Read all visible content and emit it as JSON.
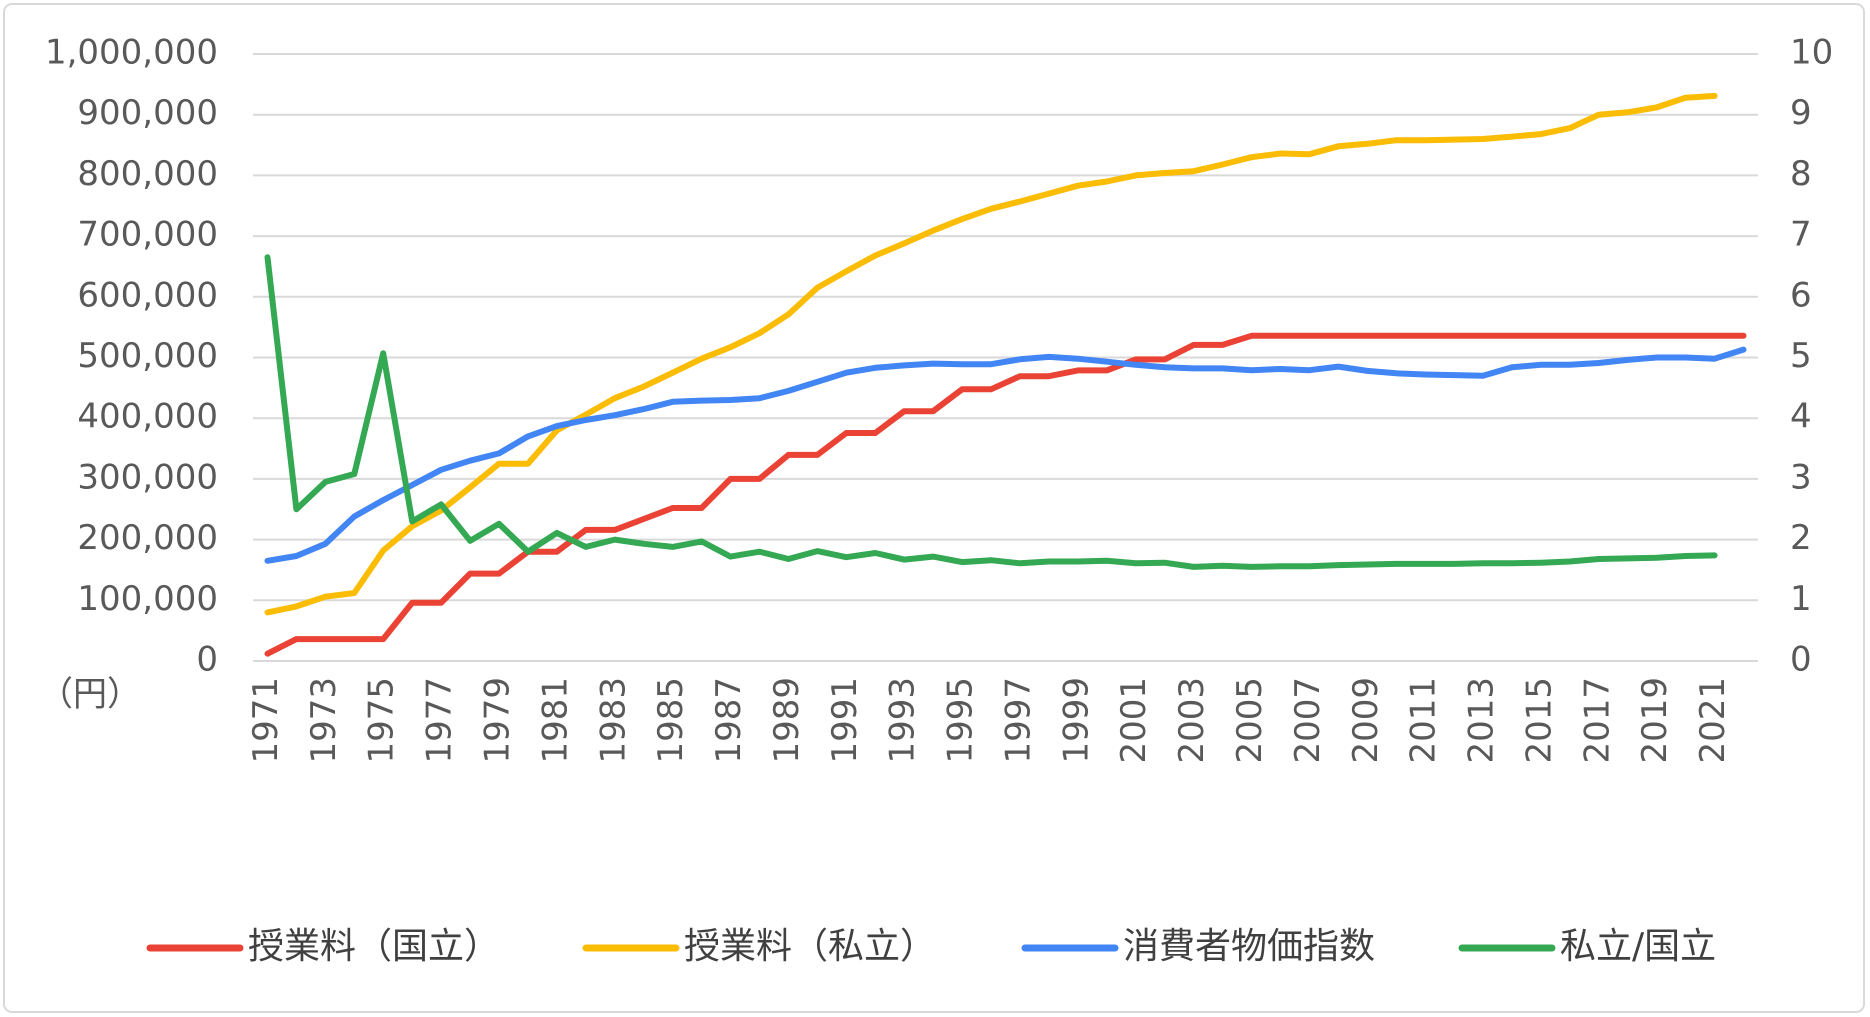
{
  "chart_data": {
    "type": "line",
    "unit_label": "（円）",
    "categories": [
      "1971",
      null,
      "1973",
      null,
      "1975",
      null,
      "1977",
      null,
      "1979",
      null,
      "1981",
      null,
      "1983",
      null,
      "1985",
      null,
      "1987",
      null,
      "1989",
      null,
      "1991",
      null,
      "1993",
      null,
      "1995",
      null,
      "1997",
      null,
      "1999",
      null,
      "2001",
      null,
      "2003",
      null,
      "2005",
      null,
      "2007",
      null,
      "2009",
      null,
      "2011",
      null,
      "2013",
      null,
      "2015",
      null,
      "2017",
      null,
      "2019",
      null,
      "2021",
      null
    ],
    "ylim": [
      0,
      1000000
    ],
    "yticks": [
      0,
      {
        "value": 100000,
        "label": "100,000"
      },
      {
        "value": 200000,
        "label": "200,000"
      },
      {
        "value": 300000,
        "label": "300,000"
      },
      {
        "value": 400000,
        "label": "400,000"
      },
      {
        "value": 500000,
        "label": "500,000"
      },
      {
        "value": 600000,
        "label": "600,000"
      },
      {
        "value": 700000,
        "label": "700,000"
      },
      {
        "value": 800000,
        "label": "800,000"
      },
      {
        "value": 900000,
        "label": "900,000"
      },
      {
        "value": 1000000,
        "label": "1,000,000"
      }
    ],
    "y2lim": [
      0,
      10
    ],
    "y2ticks": [
      0,
      1,
      2,
      3,
      4,
      5,
      6,
      7,
      8,
      9,
      10
    ],
    "grid": true,
    "legend": "bottom",
    "series": [
      {
        "name": "授業料（国立）",
        "color": "#ea4335",
        "values": [
          12000,
          36000,
          36000,
          36000,
          36000,
          96000,
          96000,
          144000,
          144000,
          180000,
          180000,
          216000,
          216000,
          234000,
          252000,
          252000,
          300000,
          300000,
          339600,
          339600,
          375600,
          375600,
          411600,
          411600,
          447600,
          447600,
          469200,
          469200,
          478800,
          478800,
          496800,
          496800,
          520800,
          520800,
          535800,
          535800,
          535800,
          535800,
          535800,
          535800,
          535800,
          535800,
          535800,
          535800,
          535800,
          535800,
          535800,
          535800,
          535800,
          535800,
          535800,
          535800
        ]
      },
      {
        "name": "授業料（私立）",
        "color": "#fbbc04",
        "values": [
          80000,
          90000,
          106000,
          112000,
          182000,
          222000,
          248000,
          286000,
          325000,
          325000,
          380000,
          406000,
          433000,
          452000,
          475000,
          498000,
          517000,
          540000,
          571000,
          615000,
          642000,
          668000,
          688000,
          709000,
          728000,
          745000,
          757000,
          770000,
          783000,
          790000,
          800000,
          804000,
          807000,
          818000,
          830000,
          836000,
          835000,
          848000,
          852000,
          858000,
          858000,
          859000,
          860000,
          864000,
          868000,
          878000,
          900000,
          904000,
          912000,
          928000,
          931000,
          null
        ]
      },
      {
        "name": "消費者物価指数",
        "color": "#4285f4",
        "axis": "y2",
        "values": [
          1.65,
          1.73,
          1.93,
          2.38,
          2.65,
          2.9,
          3.15,
          3.3,
          3.42,
          3.7,
          3.87,
          3.97,
          4.05,
          4.15,
          4.27,
          4.29,
          4.3,
          4.33,
          4.45,
          4.6,
          4.75,
          4.83,
          4.87,
          4.9,
          4.89,
          4.89,
          4.97,
          5.01,
          4.98,
          4.93,
          4.88,
          4.84,
          4.82,
          4.82,
          4.79,
          4.81,
          4.79,
          4.85,
          4.78,
          4.74,
          4.72,
          4.71,
          4.7,
          4.84,
          4.88,
          4.88,
          4.91,
          4.96,
          5.0,
          5.0,
          4.98,
          5.13
        ]
      },
      {
        "name": "私立/国立",
        "color": "#34a853",
        "axis": "y2",
        "values": [
          6.65,
          2.5,
          2.95,
          3.08,
          5.07,
          2.3,
          2.58,
          1.98,
          2.26,
          1.8,
          2.11,
          1.88,
          2.0,
          1.93,
          1.88,
          1.97,
          1.72,
          1.8,
          1.68,
          1.81,
          1.71,
          1.78,
          1.67,
          1.72,
          1.63,
          1.66,
          1.61,
          1.64,
          1.64,
          1.65,
          1.61,
          1.62,
          1.55,
          1.57,
          1.55,
          1.56,
          1.56,
          1.58,
          1.59,
          1.6,
          1.6,
          1.6,
          1.61,
          1.61,
          1.62,
          1.64,
          1.68,
          1.69,
          1.7,
          1.73,
          1.74,
          null
        ]
      }
    ]
  }
}
